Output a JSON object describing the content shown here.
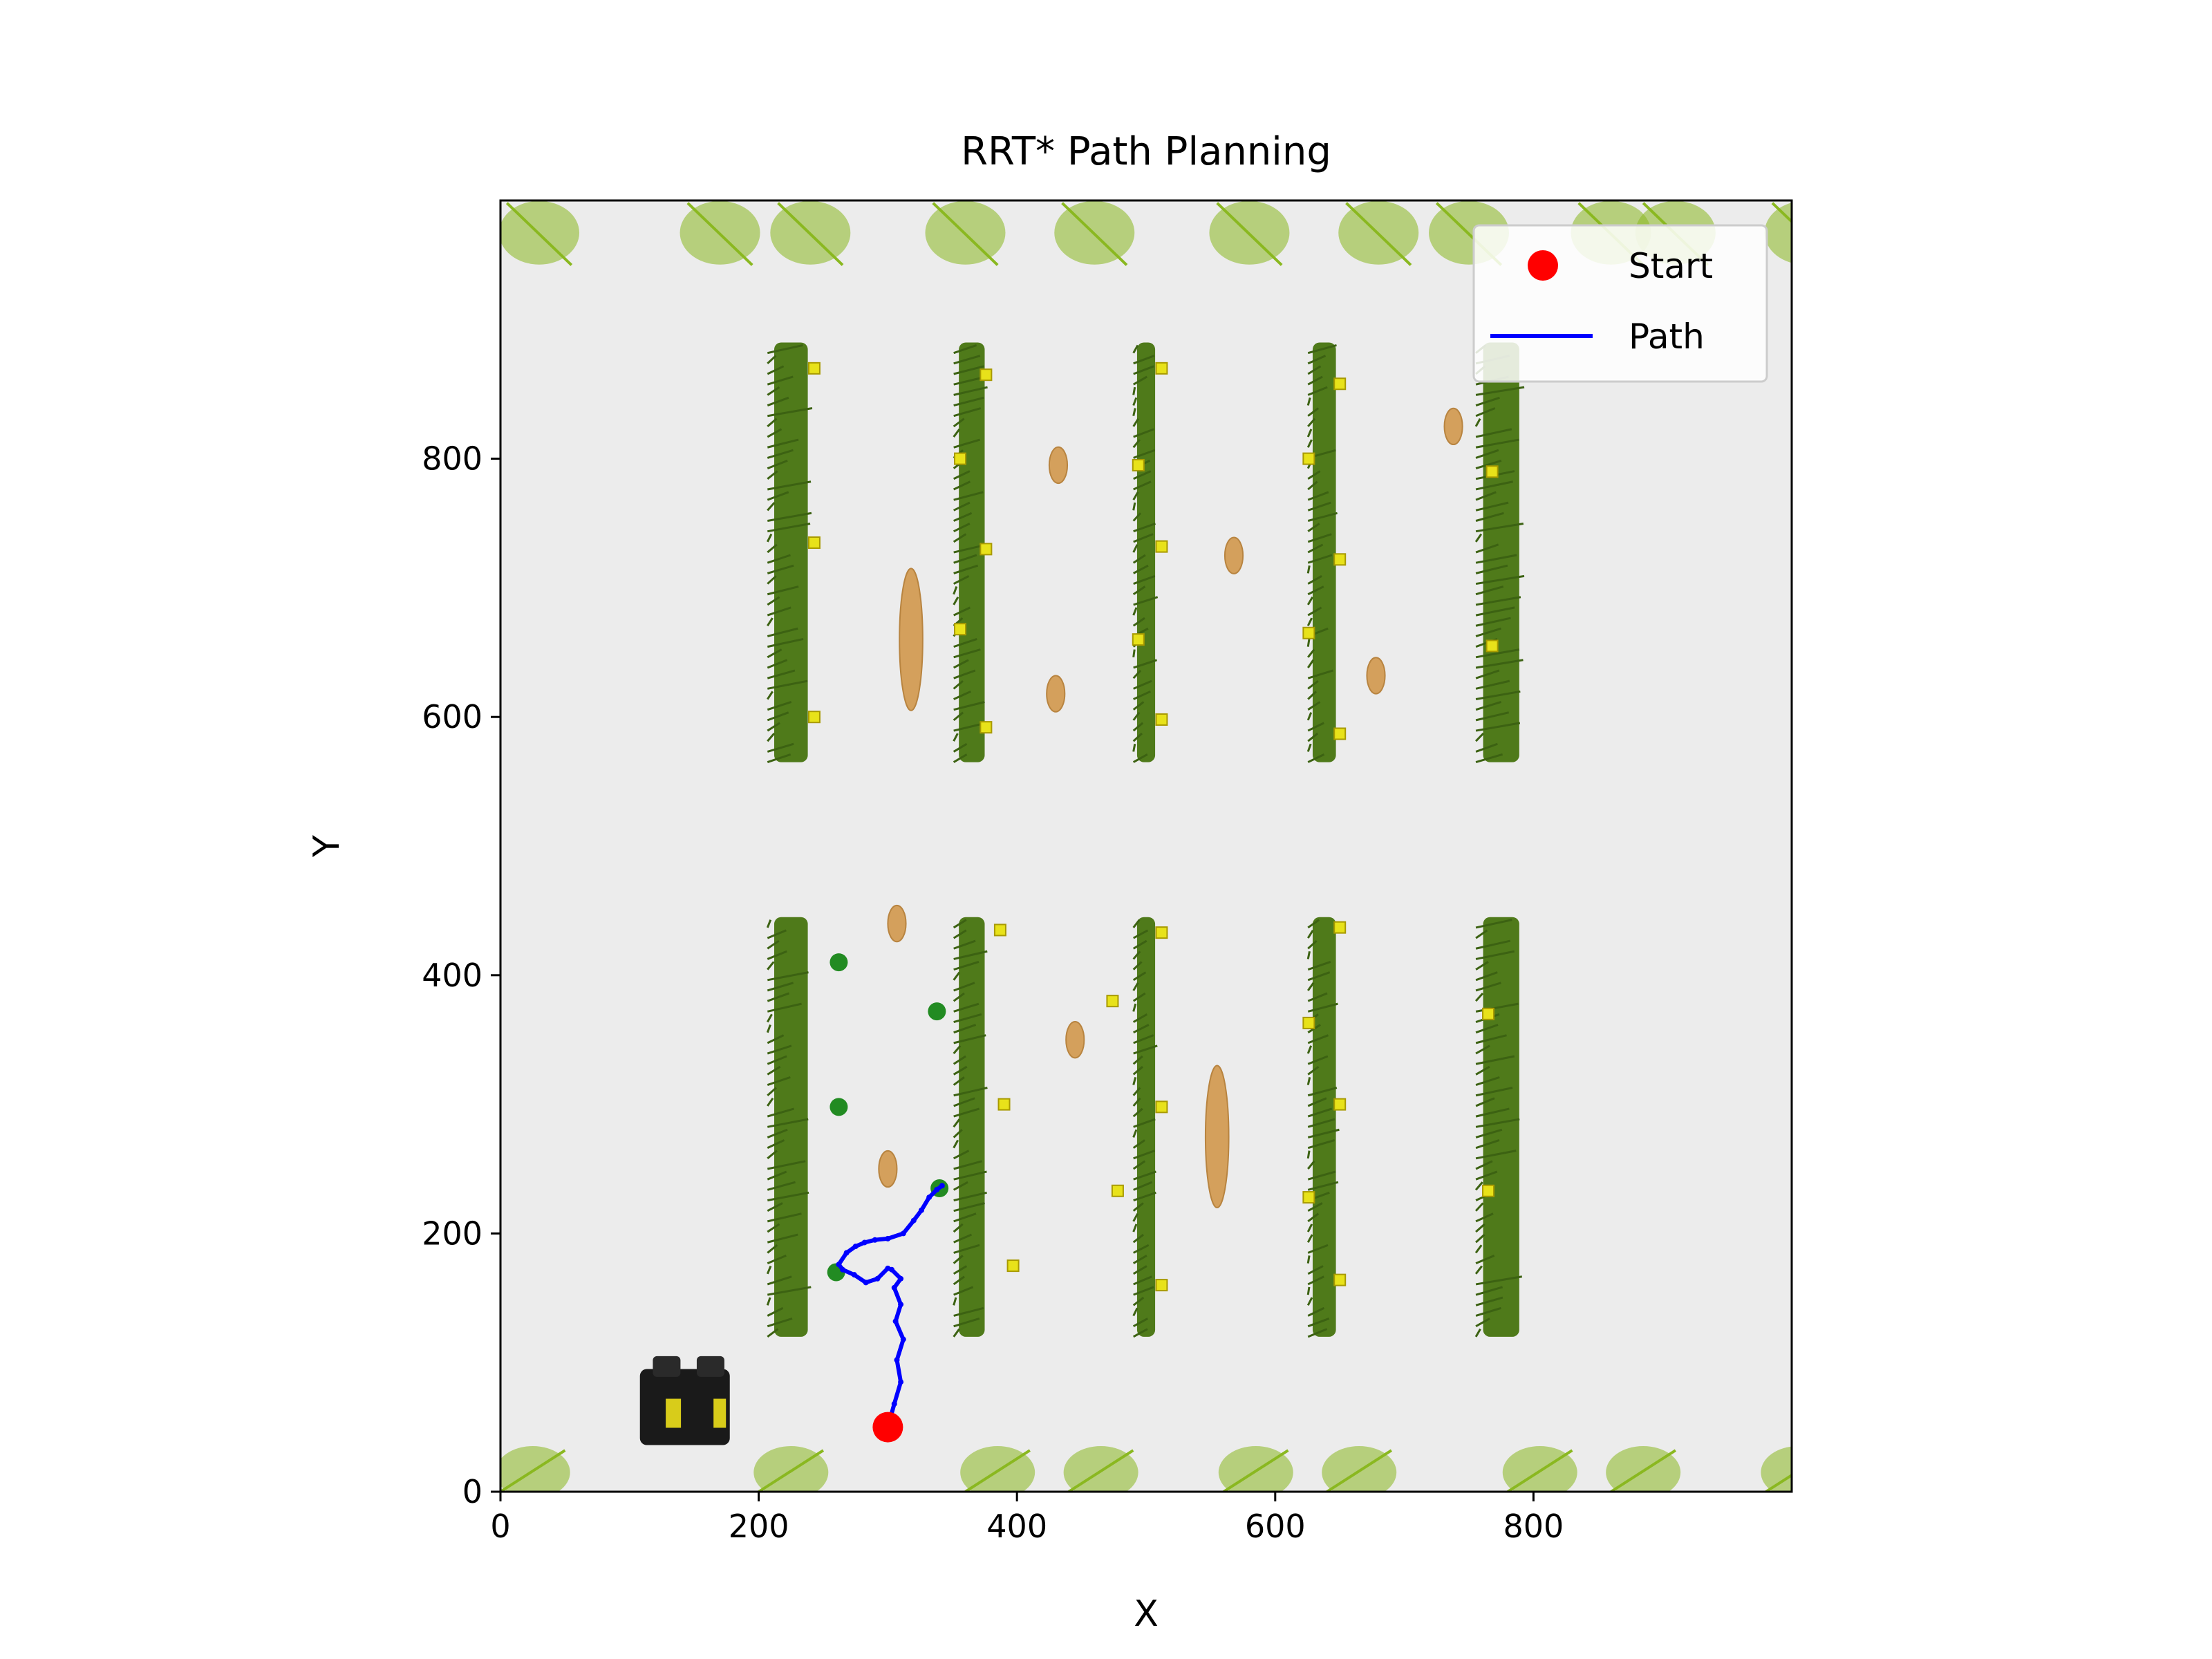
{
  "chart_data": {
    "type": "scatter",
    "title": "RRT* Path Planning",
    "xlabel": "X",
    "ylabel": "Y",
    "xlim": [
      0,
      1000
    ],
    "ylim": [
      0,
      1000
    ],
    "grid": false,
    "legend_placement": "top-right",
    "x_ticks": [
      0,
      200,
      400,
      600,
      800
    ],
    "y_ticks": [
      0,
      200,
      400,
      600,
      800
    ],
    "series": [
      {
        "name": "Start",
        "color": "#ff0000",
        "x": [
          300
        ],
        "y": [
          50
        ]
      },
      {
        "name": "Path",
        "color": "#0000ff",
        "x": [
          300,
          305,
          310,
          307,
          312,
          306,
          310,
          305,
          310,
          303,
          300,
          292,
          283,
          274,
          265,
          262,
          268,
          275,
          282,
          290,
          300,
          312,
          320,
          326,
          332,
          338,
          342
        ],
        "y": [
          50,
          68,
          85,
          102,
          118,
          132,
          145,
          158,
          165,
          172,
          173,
          165,
          162,
          168,
          172,
          176,
          185,
          190,
          193,
          195,
          196,
          200,
          210,
          218,
          228,
          234,
          237
        ]
      }
    ]
  },
  "colors": {
    "plot_background": "#ececec",
    "crop_row": "#4f7a1a",
    "crop_row_dark": "#3c6212",
    "hay": "#d4a05c",
    "marker_yellow": "#e8e21a",
    "tree_green": "#228b22",
    "grass": "#8ab820",
    "robot": "#1a1a1a"
  }
}
